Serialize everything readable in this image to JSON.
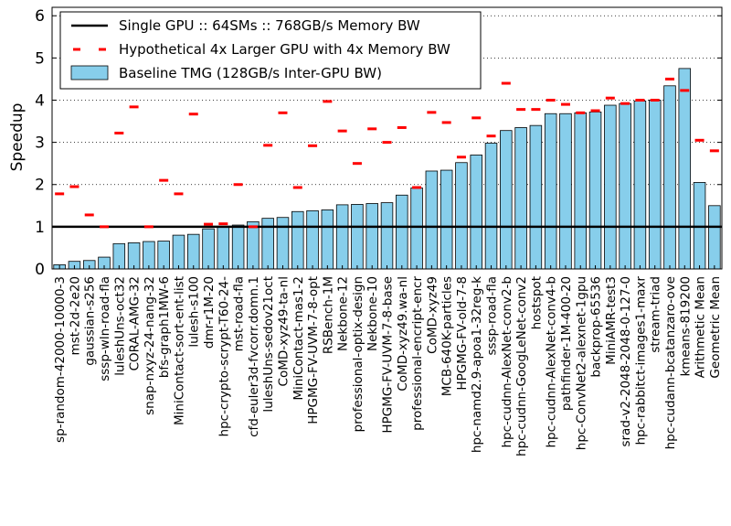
{
  "chart_data": {
    "type": "bar",
    "title": "",
    "xlabel": "",
    "ylabel": "Speedup",
    "ylim": [
      0,
      6.2
    ],
    "yticks": [
      0,
      1,
      2,
      3,
      4,
      5,
      6
    ],
    "grid": "y-dotted",
    "legend_position": "top-left",
    "baseline_value": 1,
    "colors": {
      "bar": "#87ceeb",
      "hypothetical": "#ff0000",
      "baseline": "#000000"
    },
    "legend": [
      {
        "label": "Single GPU :: 64SMs :: 768GB/s Memory BW",
        "kind": "line"
      },
      {
        "label": "Hypothetical 4x Larger GPU with 4x Memory BW",
        "kind": "dash"
      },
      {
        "label": "Baseline TMG (128GB/s Inter-GPU BW)",
        "kind": "bar"
      }
    ],
    "categories": [
      "sp-random-42000-10000-3",
      "mst-2d-2e20",
      "gaussian-s256",
      "sssp-wln-road-fla",
      "luleshUns-oct32",
      "CORAL-AMG-32",
      "snap-nxyz-24-nang-32",
      "bfs-graph1MW-6",
      "MiniContact-sort-ent-list",
      "lulesh-s100",
      "dmr-r1M-20",
      "hpc-crypto-scrypt-T60-24-",
      "mst-road-fla",
      "cfd-euler3d-fvcorr.domn.1",
      "luleshUns-sedov21oct",
      "CoMD-xyz49-ta-nl",
      "MiniContact-mas1-2",
      "HPGMG-FV-UVM-7-8-opt",
      "RSBench-1M",
      "Nekbone-12",
      "professional-optix-design",
      "Nekbone-10",
      "HPGMG-FV-UVM-7-8-base",
      "CoMD-xyz49.wa-nl",
      "professional-encript-encr",
      "CoMD-xyz49",
      "MCB-640K-particles",
      "HPGMG-FV-old-7-8",
      "hpc-namd2.9-apoa1-32reg-k",
      "sssp-road-fla",
      "hpc-cudnn-AlexNet-conv2-b",
      "hpc-cudnn-GoogLeNet-conv2",
      "hostspot",
      "hpc-cudnn-AlexNet-conv4-b",
      "pathfinder-1M-400-20",
      "hpc-ConvNet2-alexnet-1gpu",
      "backprop-65536",
      "MiniAMR-test3",
      "srad-v2-2048-2048-0-127-0",
      "hpc-rabbitct-images1-maxr",
      "stream-triad",
      "hpc-cudann-bcatanzaro-ove",
      "kmeans-819200",
      "Arithmetic Mean",
      "Geometric Mean"
    ],
    "series": [
      {
        "name": "Baseline TMG (128GB/s Inter-GPU BW)",
        "values": [
          0.1,
          0.18,
          0.2,
          0.28,
          0.6,
          0.62,
          0.65,
          0.66,
          0.8,
          0.82,
          0.95,
          1.0,
          1.04,
          1.12,
          1.2,
          1.22,
          1.36,
          1.38,
          1.4,
          1.52,
          1.53,
          1.55,
          1.57,
          1.75,
          1.92,
          2.32,
          2.34,
          2.52,
          2.7,
          2.98,
          3.28,
          3.35,
          3.4,
          3.68,
          3.68,
          3.7,
          3.72,
          3.88,
          3.92,
          3.98,
          4.0,
          4.34,
          4.75,
          2.05,
          1.5
        ]
      },
      {
        "name": "Hypothetical 4x Larger GPU with 4x Memory BW",
        "values": [
          1.78,
          1.95,
          1.28,
          1.0,
          3.22,
          3.84,
          1.0,
          2.1,
          1.78,
          3.67,
          1.06,
          1.07,
          2.0,
          1.0,
          2.93,
          3.7,
          1.93,
          2.92,
          3.97,
          3.27,
          2.5,
          3.32,
          3.0,
          3.35,
          1.93,
          3.71,
          3.47,
          2.65,
          3.58,
          3.15,
          4.4,
          3.78,
          3.78,
          4.0,
          3.9,
          3.7,
          3.75,
          4.05,
          3.92,
          4.0,
          4.0,
          4.5,
          4.23,
          3.05,
          2.8
        ]
      }
    ]
  }
}
